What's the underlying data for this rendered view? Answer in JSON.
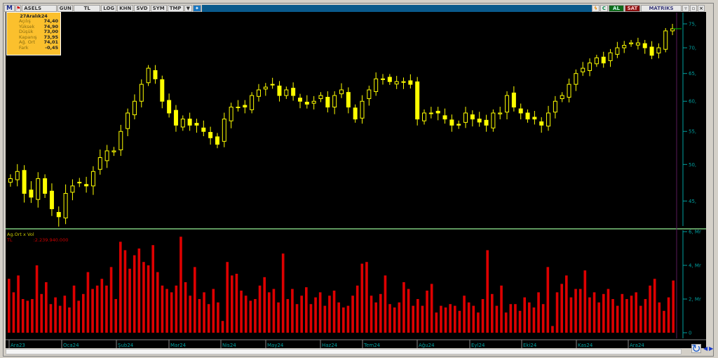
{
  "toolbar": {
    "symbol": "ASELS",
    "period": "GUN",
    "currency": "TL",
    "buttons": [
      "LOG",
      "KHN",
      "SVD",
      "SYM",
      "TMP"
    ],
    "buy": "AL",
    "sell": "SAT",
    "brand": "MATRIKS",
    "icons": [
      "matriks-logo-icon",
      "flag-icon",
      "dropdown-icon",
      "twitter-icon",
      "lightning-icon",
      "refresh-icon"
    ]
  },
  "info": {
    "date": "27Aralık24",
    "rows": [
      {
        "label": "Açılış",
        "value": "74,40"
      },
      {
        "label": "Yüksek",
        "value": "74,90"
      },
      {
        "label": "Düşük",
        "value": "73,00"
      },
      {
        "label": "Kapanış",
        "value": "73,95"
      },
      {
        "label": "Ağ. Ort",
        "value": "74,01"
      },
      {
        "label": "Fark",
        "value": "-0,45"
      }
    ]
  },
  "volume_panel": {
    "title": "Ag.Ort x Vol",
    "unit": "TL",
    "value": ":2.239.940.000"
  },
  "colors": {
    "candle": "#ffff00",
    "volume": "#dd0000",
    "axis": "#00a0a0",
    "separator": "#7fc97f",
    "current_line": "#5a1a5a"
  },
  "chart_data": [
    {
      "type": "candlestick",
      "scale": "log",
      "ylim": [
        42,
        76.5
      ],
      "yticks": [
        {
          "v": 75,
          "label": "75,"
        },
        {
          "v": 70,
          "label": "70,"
        },
        {
          "v": 65,
          "label": "65,"
        },
        {
          "v": 60,
          "label": "60,"
        },
        {
          "v": 55,
          "label": "55,"
        },
        {
          "v": 50,
          "label": "50,"
        },
        {
          "v": 45,
          "label": "45,"
        }
      ],
      "closes": [
        48,
        49,
        46,
        45.5,
        48,
        46,
        44,
        43,
        46,
        47,
        47.5,
        47,
        49,
        51,
        52,
        52,
        55,
        58,
        60,
        63,
        66,
        64,
        60,
        58,
        56,
        57,
        56,
        56,
        55,
        54,
        53,
        57,
        59,
        59,
        59,
        61,
        62,
        62.5,
        63,
        61,
        62,
        61,
        60,
        59.5,
        60,
        61,
        59,
        61,
        62,
        59,
        57,
        60,
        62,
        64,
        64,
        63.5,
        63.5,
        63.5,
        63,
        57,
        58,
        58,
        58,
        57,
        56,
        56,
        58,
        57,
        56.5,
        56,
        58,
        58,
        61,
        59,
        58,
        57,
        57,
        56,
        58,
        60,
        61,
        63,
        65,
        66,
        67,
        68,
        67,
        69,
        70,
        70.5,
        71,
        71,
        70,
        68.5,
        70,
        73.5,
        73.95
      ],
      "last": {
        "open": 74.4,
        "high": 74.9,
        "low": 73.0,
        "close": 73.95
      }
    },
    {
      "type": "bar",
      "unit": "Mr",
      "ylim": [
        0,
        6
      ],
      "yticks": [
        {
          "v": 6,
          "label": "6, Mr"
        },
        {
          "v": 4,
          "label": "4, Mr"
        },
        {
          "v": 2,
          "label": "2, Mr"
        },
        {
          "v": 0,
          "label": "0"
        }
      ],
      "values": [
        3.2,
        2.4,
        3.4,
        2.0,
        1.9,
        2.0,
        4.0,
        2.3,
        3.0,
        1.7,
        2.1,
        1.6,
        2.2,
        1.5,
        2.8,
        1.9,
        2.3,
        3.6,
        2.6,
        2.8,
        3.2,
        2.8,
        3.9,
        2.0,
        5.4,
        4.9,
        3.8,
        4.6,
        5.0,
        4.2,
        4.0,
        5.2,
        3.6,
        2.8,
        2.6,
        2.4,
        2.8,
        5.7,
        3.0,
        2.2,
        3.9,
        2.0,
        2.4,
        1.7,
        2.6,
        1.8,
        0.7,
        4.2,
        3.4,
        3.5,
        2.5,
        2.2,
        1.9,
        2.0,
        2.8,
        3.3,
        2.4,
        2.6,
        1.8,
        4.7,
        2.0,
        2.6,
        1.7,
        2.2,
        2.7,
        1.7,
        2.1,
        2.4,
        1.6,
        2.2,
        2.5,
        1.8,
        1.5,
        1.6,
        2.2,
        2.8,
        4.1,
        4.2,
        2.2,
        1.8,
        2.3,
        3.4,
        1.7,
        1.5,
        1.8,
        3.0,
        2.6,
        1.6,
        2.0,
        1.6,
        2.5,
        2.9,
        1.2,
        1.6,
        1.5,
        1.7,
        1.6,
        1.3,
        2.2,
        1.8,
        1.6,
        1.2,
        2.0,
        4.9,
        2.3,
        1.6,
        2.8,
        1.2,
        1.7,
        1.7,
        1.3,
        2.1,
        1.8,
        1.5,
        2.4,
        1.7,
        3.9,
        0.4,
        2.4,
        2.9,
        3.4,
        2.1,
        2.6,
        2.6,
        3.7,
        2.1,
        2.4,
        1.8,
        2.3,
        2.6,
        2.0,
        1.6,
        2.3,
        2.0,
        2.2,
        2.4,
        1.6,
        2.0,
        2.8,
        3.2,
        1.8,
        1.3,
        2.1,
        3.1
      ]
    },
    {
      "x_ticks": [
        "Ara23",
        "Oca24",
        "Şub24",
        "Mar24",
        "Nis24",
        "May24",
        "Haz24",
        "Tem24",
        "Ağu24",
        "Eyl24",
        "Eki24",
        "Kas24",
        "Ara24"
      ]
    }
  ]
}
